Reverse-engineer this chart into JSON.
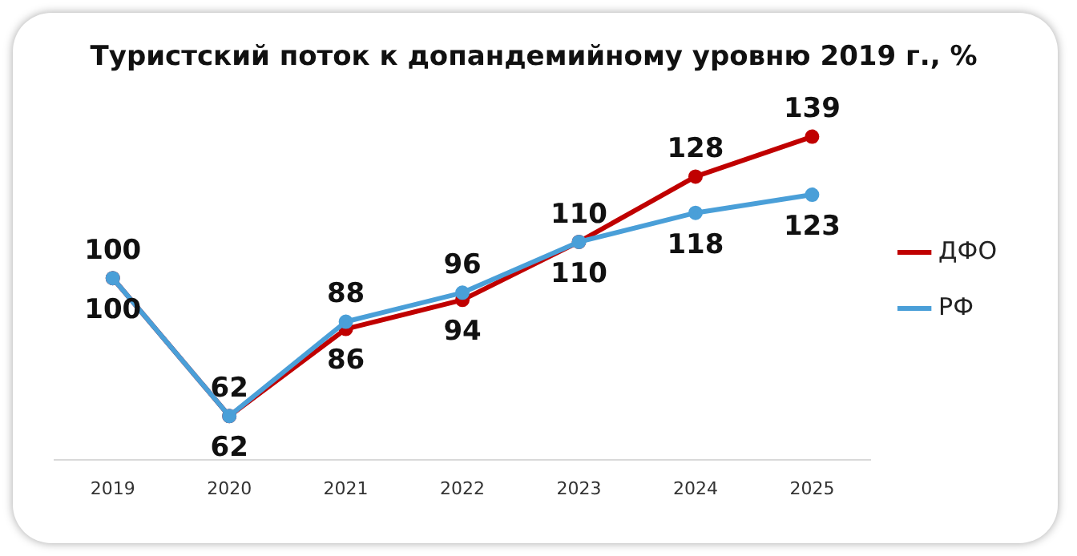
{
  "chart_data": {
    "type": "line",
    "title": "Туристский поток к допандемийному уровню 2019 г., %",
    "categories": [
      "2019",
      "2020",
      "2021",
      "2022",
      "2023",
      "2024",
      "2025"
    ],
    "series": [
      {
        "name": "ДФО",
        "color": "#c00000",
        "values": [
          100,
          62,
          86,
          94,
          110,
          128,
          139
        ]
      },
      {
        "name": "РФ",
        "color": "#4a9fd8",
        "values": [
          100,
          62,
          88,
          96,
          110,
          118,
          123
        ]
      }
    ],
    "data_labels": true,
    "legend": "right",
    "marker": "circle",
    "grid": false
  }
}
